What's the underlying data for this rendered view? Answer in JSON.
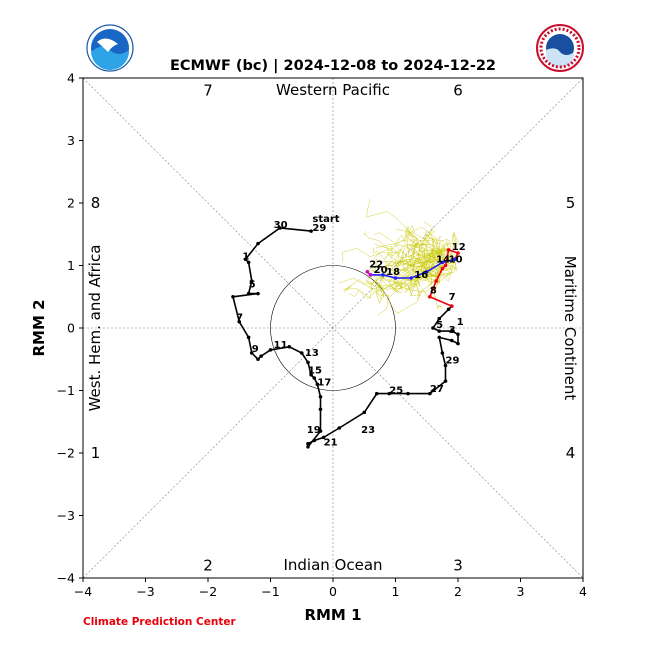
{
  "chart_data": {
    "type": "line",
    "title": "ECMWF (bc) | 2024-12-08 to 2024-12-22",
    "xlabel": "RMM 1",
    "ylabel": "RMM 2",
    "xlim": [
      -4,
      4
    ],
    "ylim": [
      -4,
      4
    ],
    "x_ticks": [
      "−4",
      "−3",
      "−2",
      "−1",
      "0",
      "1",
      "2",
      "3",
      "4"
    ],
    "y_ticks": [
      "−4",
      "−3",
      "−2",
      "−1",
      "0",
      "1",
      "2",
      "3",
      "4"
    ],
    "regions": {
      "top": "Western Pacific",
      "bottom": "Indian Ocean",
      "left": "West. Hem. and Africa",
      "right": "Maritime Continent"
    },
    "phases": [
      {
        "label": "1",
        "x": -3.8,
        "y": -2.0
      },
      {
        "label": "2",
        "x": -2.0,
        "y": -3.8
      },
      {
        "label": "3",
        "x": 2.0,
        "y": -3.8
      },
      {
        "label": "4",
        "x": 3.8,
        "y": -2.0
      },
      {
        "label": "5",
        "x": 3.8,
        "y": 2.0
      },
      {
        "label": "6",
        "x": 2.0,
        "y": 3.8
      },
      {
        "label": "7",
        "x": -2.0,
        "y": 3.8
      },
      {
        "label": "8",
        "x": -3.8,
        "y": 2.0
      }
    ],
    "credit": "Climate Prediction Center",
    "logos": {
      "left": "NOAA",
      "right": "NATIONAL WEATHER SERVICE"
    },
    "series": [
      {
        "color": "#000000",
        "x": [
          -0.35,
          -0.85,
          -1.2,
          -1.4,
          -1.35,
          -1.3,
          -1.35,
          -1.2,
          -1.6,
          -1.5,
          -1.35,
          -1.3,
          -1.2,
          -1.15,
          -1.0,
          -0.7,
          -0.5,
          -0.4,
          -0.35,
          -0.3,
          -0.25,
          -0.2,
          -0.2,
          -0.2,
          -0.4,
          -0.4,
          -0.3,
          -0.15,
          0.1,
          0.5,
          0.7,
          0.9,
          1.2,
          1.55,
          1.8,
          1.8,
          1.75,
          1.7,
          1.9,
          2.0,
          2.0,
          1.9,
          1.7,
          1.6,
          1.7,
          1.85,
          1.9
        ],
        "y": [
          1.55,
          1.6,
          1.35,
          1.1,
          1.05,
          0.75,
          0.55,
          0.55,
          0.5,
          0.1,
          -0.15,
          -0.4,
          -0.5,
          -0.45,
          -0.35,
          -0.3,
          -0.4,
          -0.55,
          -0.75,
          -0.8,
          -0.9,
          -1.1,
          -1.3,
          -1.65,
          -1.9,
          -1.85,
          -1.8,
          -1.75,
          -1.6,
          -1.35,
          -1.05,
          -1.05,
          -1.05,
          -1.05,
          -0.85,
          -0.6,
          -0.4,
          -0.15,
          -0.2,
          -0.25,
          -0.1,
          -0.05,
          -0.05,
          0.0,
          0.15,
          0.3,
          0.35
        ]
      },
      {
        "color": "#e8000b",
        "x": [
          1.9,
          1.55,
          1.65,
          1.75,
          1.8,
          1.85,
          2.0,
          1.95
        ],
        "y": [
          0.35,
          0.5,
          0.75,
          0.95,
          1.0,
          1.25,
          1.2,
          1.1
        ]
      },
      {
        "color": "#1f1fff",
        "x": [
          1.95,
          1.75,
          1.5,
          1.25,
          1.0,
          0.8,
          0.6
        ],
        "y": [
          1.1,
          1.05,
          0.9,
          0.8,
          0.8,
          0.85,
          0.85
        ]
      },
      {
        "color": "#cc00cc",
        "x": [
          0.6,
          0.55
        ],
        "y": [
          0.85,
          0.9
        ]
      }
    ],
    "day_labels": [
      {
        "text": "start",
        "x": -0.33,
        "y": 1.7
      },
      {
        "text": "30",
        "x": -0.95,
        "y": 1.6
      },
      {
        "text": "29",
        "x": -0.33,
        "y": 1.55
      },
      {
        "text": "1",
        "x": -1.45,
        "y": 1.1
      },
      {
        "text": "5",
        "x": -1.35,
        "y": 0.65
      },
      {
        "text": "7",
        "x": -1.55,
        "y": 0.12
      },
      {
        "text": "9",
        "x": -1.3,
        "y": -0.38
      },
      {
        "text": "11",
        "x": -0.95,
        "y": -0.32
      },
      {
        "text": "13",
        "x": -0.45,
        "y": -0.45
      },
      {
        "text": "15",
        "x": -0.4,
        "y": -0.73
      },
      {
        "text": "17",
        "x": -0.25,
        "y": -0.92
      },
      {
        "text": "19",
        "x": -0.42,
        "y": -1.68
      },
      {
        "text": "21",
        "x": -0.15,
        "y": -1.88
      },
      {
        "text": "23",
        "x": 0.45,
        "y": -1.68
      },
      {
        "text": "25",
        "x": 0.9,
        "y": -1.05
      },
      {
        "text": "27",
        "x": 1.55,
        "y": -1.02
      },
      {
        "text": "29",
        "x": 1.8,
        "y": -0.57
      },
      {
        "text": "3",
        "x": 1.85,
        "y": -0.08
      },
      {
        "text": "1",
        "x": 1.98,
        "y": 0.05
      },
      {
        "text": "5",
        "x": 1.65,
        "y": 0.0
      },
      {
        "text": "7",
        "x": 1.85,
        "y": 0.45
      },
      {
        "text": "8",
        "x": 1.55,
        "y": 0.55
      },
      {
        "text": "12",
        "x": 1.9,
        "y": 1.25
      },
      {
        "text": "10",
        "x": 1.85,
        "y": 1.05
      },
      {
        "text": "14",
        "x": 1.65,
        "y": 1.05
      },
      {
        "text": "16",
        "x": 1.3,
        "y": 0.8
      },
      {
        "text": "18",
        "x": 0.85,
        "y": 0.85
      },
      {
        "text": "20",
        "x": 0.65,
        "y": 0.88
      },
      {
        "text": "22",
        "x": 0.58,
        "y": 0.97
      }
    ]
  }
}
